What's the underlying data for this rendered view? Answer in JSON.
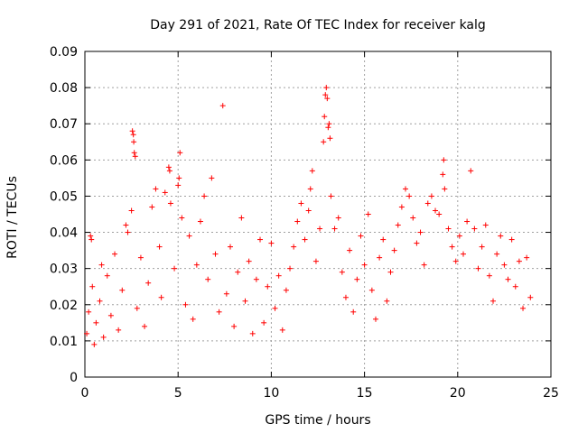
{
  "chart_data": {
    "type": "scatter",
    "title": "Day 291 of 2021, Rate Of TEC Index for receiver kalg",
    "xlabel": "GPS time / hours",
    "ylabel": "ROTI / TECUs",
    "xlim": [
      0,
      25
    ],
    "ylim": [
      0,
      0.09
    ],
    "xticks": [
      0,
      5,
      10,
      15,
      20,
      25
    ],
    "xtick_labels": [
      "0",
      "5",
      "10",
      "15",
      "20",
      "25"
    ],
    "yticks": [
      0,
      0.01,
      0.02,
      0.03,
      0.04,
      0.05,
      0.06,
      0.07,
      0.08,
      0.09
    ],
    "ytick_labels": [
      "0",
      "0.01",
      "0.02",
      "0.03",
      "0.04",
      "0.05",
      "0.06",
      "0.07",
      "0.08",
      "0.09"
    ],
    "grid": true,
    "marker": "plus",
    "color": "#ff0000",
    "series": [
      {
        "name": "ROTI",
        "points": [
          [
            0.1,
            0.012
          ],
          [
            0.2,
            0.018
          ],
          [
            0.3,
            0.039
          ],
          [
            0.35,
            0.038
          ],
          [
            0.4,
            0.025
          ],
          [
            0.5,
            0.009
          ],
          [
            0.6,
            0.015
          ],
          [
            0.8,
            0.021
          ],
          [
            0.9,
            0.031
          ],
          [
            1.0,
            0.011
          ],
          [
            1.2,
            0.028
          ],
          [
            1.4,
            0.017
          ],
          [
            1.6,
            0.034
          ],
          [
            1.8,
            0.013
          ],
          [
            2.0,
            0.024
          ],
          [
            2.2,
            0.042
          ],
          [
            2.3,
            0.04
          ],
          [
            2.5,
            0.046
          ],
          [
            2.55,
            0.068
          ],
          [
            2.6,
            0.067
          ],
          [
            2.62,
            0.065
          ],
          [
            2.65,
            0.062
          ],
          [
            2.7,
            0.061
          ],
          [
            2.8,
            0.019
          ],
          [
            3.0,
            0.033
          ],
          [
            3.2,
            0.014
          ],
          [
            3.4,
            0.026
          ],
          [
            3.6,
            0.047
          ],
          [
            3.8,
            0.052
          ],
          [
            4.0,
            0.036
          ],
          [
            4.1,
            0.022
          ],
          [
            4.3,
            0.051
          ],
          [
            4.5,
            0.058
          ],
          [
            4.55,
            0.057
          ],
          [
            4.6,
            0.048
          ],
          [
            4.8,
            0.03
          ],
          [
            5.0,
            0.053
          ],
          [
            5.05,
            0.055
          ],
          [
            5.1,
            0.062
          ],
          [
            5.2,
            0.044
          ],
          [
            5.4,
            0.02
          ],
          [
            5.6,
            0.039
          ],
          [
            5.8,
            0.016
          ],
          [
            6.0,
            0.031
          ],
          [
            6.2,
            0.043
          ],
          [
            6.4,
            0.05
          ],
          [
            6.6,
            0.027
          ],
          [
            6.8,
            0.055
          ],
          [
            7.0,
            0.034
          ],
          [
            7.2,
            0.018
          ],
          [
            7.4,
            0.075
          ],
          [
            7.6,
            0.023
          ],
          [
            7.8,
            0.036
          ],
          [
            8.0,
            0.014
          ],
          [
            8.2,
            0.029
          ],
          [
            8.4,
            0.044
          ],
          [
            8.6,
            0.021
          ],
          [
            8.8,
            0.032
          ],
          [
            9.0,
            0.012
          ],
          [
            9.2,
            0.027
          ],
          [
            9.4,
            0.038
          ],
          [
            9.6,
            0.015
          ],
          [
            9.8,
            0.025
          ],
          [
            10.0,
            0.037
          ],
          [
            10.2,
            0.019
          ],
          [
            10.4,
            0.028
          ],
          [
            10.6,
            0.013
          ],
          [
            10.8,
            0.024
          ],
          [
            11.0,
            0.03
          ],
          [
            11.2,
            0.036
          ],
          [
            11.4,
            0.043
          ],
          [
            11.6,
            0.048
          ],
          [
            11.8,
            0.038
          ],
          [
            12.0,
            0.046
          ],
          [
            12.1,
            0.052
          ],
          [
            12.2,
            0.057
          ],
          [
            12.4,
            0.032
          ],
          [
            12.6,
            0.041
          ],
          [
            12.8,
            0.065
          ],
          [
            12.85,
            0.072
          ],
          [
            12.9,
            0.078
          ],
          [
            12.95,
            0.08
          ],
          [
            13.0,
            0.077
          ],
          [
            13.05,
            0.069
          ],
          [
            13.1,
            0.07
          ],
          [
            13.15,
            0.066
          ],
          [
            13.2,
            0.05
          ],
          [
            13.4,
            0.041
          ],
          [
            13.6,
            0.044
          ],
          [
            13.8,
            0.029
          ],
          [
            14.0,
            0.022
          ],
          [
            14.2,
            0.035
          ],
          [
            14.4,
            0.018
          ],
          [
            14.6,
            0.027
          ],
          [
            14.8,
            0.039
          ],
          [
            15.0,
            0.031
          ],
          [
            15.2,
            0.045
          ],
          [
            15.4,
            0.024
          ],
          [
            15.6,
            0.016
          ],
          [
            15.8,
            0.033
          ],
          [
            16.0,
            0.038
          ],
          [
            16.2,
            0.021
          ],
          [
            16.4,
            0.029
          ],
          [
            16.6,
            0.035
          ],
          [
            16.8,
            0.042
          ],
          [
            17.0,
            0.047
          ],
          [
            17.2,
            0.052
          ],
          [
            17.4,
            0.05
          ],
          [
            17.6,
            0.044
          ],
          [
            17.8,
            0.037
          ],
          [
            18.0,
            0.04
          ],
          [
            18.2,
            0.031
          ],
          [
            18.4,
            0.048
          ],
          [
            18.6,
            0.05
          ],
          [
            18.8,
            0.046
          ],
          [
            19.0,
            0.045
          ],
          [
            19.2,
            0.056
          ],
          [
            19.25,
            0.06
          ],
          [
            19.3,
            0.052
          ],
          [
            19.5,
            0.041
          ],
          [
            19.7,
            0.036
          ],
          [
            19.9,
            0.032
          ],
          [
            20.1,
            0.039
          ],
          [
            20.3,
            0.034
          ],
          [
            20.5,
            0.043
          ],
          [
            20.7,
            0.057
          ],
          [
            20.9,
            0.041
          ],
          [
            21.1,
            0.03
          ],
          [
            21.3,
            0.036
          ],
          [
            21.5,
            0.042
          ],
          [
            21.7,
            0.028
          ],
          [
            21.9,
            0.021
          ],
          [
            22.1,
            0.034
          ],
          [
            22.3,
            0.039
          ],
          [
            22.5,
            0.031
          ],
          [
            22.7,
            0.027
          ],
          [
            22.9,
            0.038
          ],
          [
            23.1,
            0.025
          ],
          [
            23.3,
            0.032
          ],
          [
            23.5,
            0.019
          ],
          [
            23.7,
            0.033
          ],
          [
            23.9,
            0.022
          ]
        ]
      }
    ]
  }
}
